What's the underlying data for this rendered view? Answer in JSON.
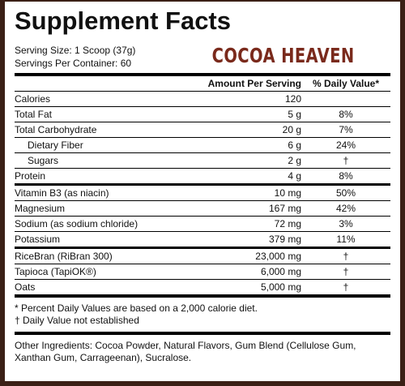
{
  "title": "Supplement Facts",
  "serving_size": "Serving Size: 1 Scoop (37g)",
  "servings_per_container": "Servings Per Container: 60",
  "brand": "COCOA HEAVEN",
  "table": {
    "header": [
      "Amount Per Serving",
      "% Daily Value*"
    ],
    "sections": [
      [
        {
          "name": "Calories",
          "amount": "120"
        },
        {
          "name": "Total Fat",
          "amount": "5 g",
          "dv": "8%"
        },
        {
          "name": "Total Carbohydrate",
          "amount": "20 g",
          "dv": "7%"
        },
        {
          "name": "Dietary Fiber",
          "amount": "6 g",
          "dv": "24%",
          "indent": true
        },
        {
          "name": "Sugars",
          "amount": "2 g",
          "dv": "†",
          "indent": true
        },
        {
          "name": "Protein",
          "amount": "4 g",
          "dv": "8%"
        }
      ],
      [
        {
          "name": "Vitamin B3 (as niacin)",
          "amount": "10 mg",
          "dv": "50%"
        },
        {
          "name": "Magnesium",
          "amount": "167 mg",
          "dv": "42%"
        },
        {
          "name": "Sodium (as sodium chloride)",
          "amount": "72 mg",
          "dv": "3%"
        },
        {
          "name": "Potassium",
          "amount": "379 mg",
          "dv": "11%"
        }
      ],
      [
        {
          "name": "RiceBran (RiBran 300)",
          "amount": "23,000 mg",
          "dv": "†"
        },
        {
          "name": "Tapioca (TapiOK®)",
          "amount": "6,000 mg",
          "dv": "†"
        },
        {
          "name": "Oats",
          "amount": "5,000 mg",
          "dv": "†"
        }
      ]
    ]
  },
  "footnotes": [
    "* Percent Daily Values are based on a 2,000 calorie diet.",
    "† Daily Value not established"
  ],
  "other_ingredients": "Other Ingredients:  Cocoa Powder, Natural Flavors, Gum Blend (Cellulose Gum, Xanthan Gum, Carrageenan), Sucralose."
}
